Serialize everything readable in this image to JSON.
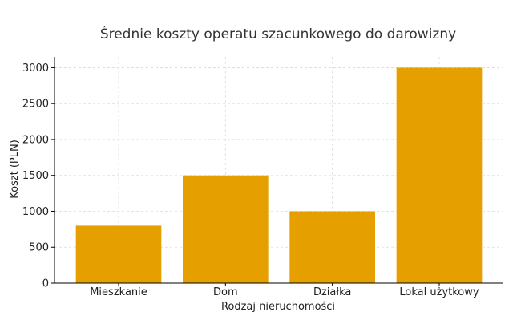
{
  "chart_data": {
    "type": "bar",
    "title": "Średnie koszty operatu szacunkowego do darowizny",
    "xlabel": "Rodzaj nieruchomości",
    "ylabel": "Koszt (PLN)",
    "categories": [
      "Mieszkanie",
      "Dom",
      "Działka",
      "Lokal użytkowy"
    ],
    "values": [
      800,
      1500,
      1000,
      3000
    ],
    "ylim": [
      0,
      3150
    ],
    "yticks": [
      0,
      500,
      1000,
      1500,
      2000,
      2500,
      3000
    ],
    "bar_color": "#e5a000",
    "grid": true
  }
}
